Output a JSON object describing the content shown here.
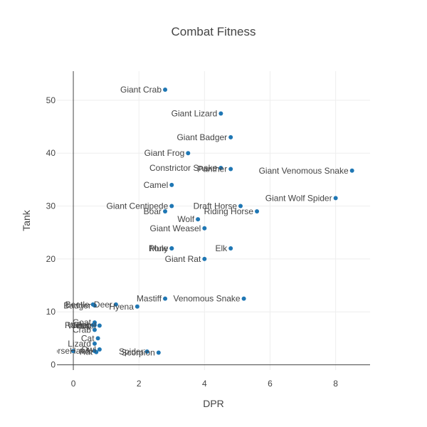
{
  "chart_data": {
    "type": "scatter",
    "title": "Combat Fitness",
    "xlabel": "DPR",
    "ylabel": "Tank",
    "xlim": [
      -0.5,
      9.05
    ],
    "ylim": [
      -1,
      55.5
    ],
    "xticks": [
      0,
      2,
      4,
      6,
      8
    ],
    "yticks": [
      0,
      10,
      20,
      30,
      40,
      50
    ],
    "grid": true,
    "marker_color": "#1f77b4",
    "points": [
      {
        "label": "Giant Crab",
        "x": 2.8,
        "y": 52
      },
      {
        "label": "Giant Lizard",
        "x": 4.5,
        "y": 47.5
      },
      {
        "label": "Giant Badger",
        "x": 4.8,
        "y": 43
      },
      {
        "label": "Giant Frog",
        "x": 3.5,
        "y": 40
      },
      {
        "label": "Constrictor Snake",
        "x": 4.5,
        "y": 37.2
      },
      {
        "label": "Panther",
        "x": 4.8,
        "y": 37
      },
      {
        "label": "Giant Venomous Snake",
        "x": 8.5,
        "y": 36.7
      },
      {
        "label": "Camel",
        "x": 3.0,
        "y": 34
      },
      {
        "label": "Giant Wolf Spider",
        "x": 8.0,
        "y": 31.5
      },
      {
        "label": "Giant Centipede",
        "x": 3.0,
        "y": 30
      },
      {
        "label": "Draft Horse",
        "x": 5.1,
        "y": 30
      },
      {
        "label": "Boar",
        "x": 2.8,
        "y": 29
      },
      {
        "label": "Riding Horse",
        "x": 5.6,
        "y": 29
      },
      {
        "label": "Wolf",
        "x": 3.8,
        "y": 27.5
      },
      {
        "label": "Giant Weasel",
        "x": 4.0,
        "y": 25.8
      },
      {
        "label": "Pony",
        "x": 3.0,
        "y": 22
      },
      {
        "label": "Mule",
        "x": 3.0,
        "y": 22
      },
      {
        "label": "Elk",
        "x": 4.8,
        "y": 22
      },
      {
        "label": "Giant Rat",
        "x": 4.0,
        "y": 20
      },
      {
        "label": "Mastiff",
        "x": 2.8,
        "y": 12.5
      },
      {
        "label": "Venomous Snake",
        "x": 5.2,
        "y": 12.5
      },
      {
        "label": "Beetle",
        "x": 0.6,
        "y": 11.4
      },
      {
        "label": "Deer",
        "x": 1.3,
        "y": 11.4
      },
      {
        "label": "Badger",
        "x": 0.65,
        "y": 11.2
      },
      {
        "label": "Hyena",
        "x": 1.95,
        "y": 11
      },
      {
        "label": "Goat",
        "x": 0.65,
        "y": 8
      },
      {
        "label": "Bat",
        "x": 0.6,
        "y": 7.5
      },
      {
        "label": "Raven",
        "x": 0.6,
        "y": 7.5
      },
      {
        "label": "Frog",
        "x": 0.65,
        "y": 7.5
      },
      {
        "label": "Weasel",
        "x": 0.8,
        "y": 7.4
      },
      {
        "label": "Crab",
        "x": 0.65,
        "y": 6.6
      },
      {
        "label": "Cat",
        "x": 0.75,
        "y": 5
      },
      {
        "label": "Lizard",
        "x": 0.65,
        "y": 4
      },
      {
        "label": "Owl",
        "x": 0.8,
        "y": 2.9
      },
      {
        "label": "Hawk",
        "x": 0.65,
        "y": 2.6
      },
      {
        "label": "Rat",
        "x": 0.7,
        "y": 2.4
      },
      {
        "label": "Seahorse",
        "x": 0.0,
        "y": 2.6
      },
      {
        "label": "Spider",
        "x": 2.25,
        "y": 2.5
      },
      {
        "label": "Scorpion",
        "x": 2.6,
        "y": 2.3
      }
    ]
  }
}
